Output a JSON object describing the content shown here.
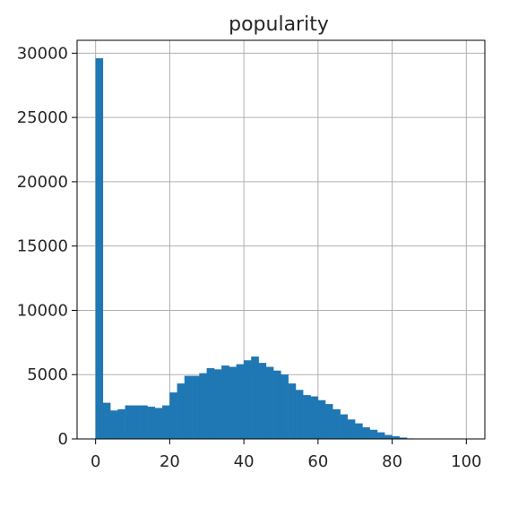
{
  "chart_data": {
    "type": "bar",
    "title": "popularity",
    "xlabel": "",
    "ylabel": "",
    "xlim": [
      -5,
      105
    ],
    "ylim": [
      0,
      31000
    ],
    "xticks": [
      0,
      20,
      40,
      60,
      80,
      100
    ],
    "yticks": [
      0,
      5000,
      10000,
      15000,
      20000,
      25000,
      30000
    ],
    "grid": true,
    "bin_width": 2,
    "bins_start": [
      0,
      2,
      4,
      6,
      8,
      10,
      12,
      14,
      16,
      18,
      20,
      22,
      24,
      26,
      28,
      30,
      32,
      34,
      36,
      38,
      40,
      42,
      44,
      46,
      48,
      50,
      52,
      54,
      56,
      58,
      60,
      62,
      64,
      66,
      68,
      70,
      72,
      74,
      76,
      78,
      80,
      82,
      84,
      86,
      88,
      90,
      92,
      94,
      96,
      98
    ],
    "values": [
      29600,
      2800,
      2200,
      2300,
      2600,
      2600,
      2600,
      2500,
      2400,
      2600,
      3600,
      4300,
      4900,
      4900,
      5100,
      5500,
      5400,
      5700,
      5600,
      5800,
      6100,
      6400,
      5900,
      5600,
      5300,
      5000,
      4300,
      3800,
      3400,
      3300,
      3000,
      2700,
      2300,
      1900,
      1500,
      1200,
      900,
      700,
      500,
      300,
      200,
      100,
      30,
      10,
      5,
      3,
      2,
      1,
      1,
      1
    ],
    "bar_color": "#1f77b4",
    "grid_color": "#b0b0b0",
    "frame_color": "#000000"
  }
}
